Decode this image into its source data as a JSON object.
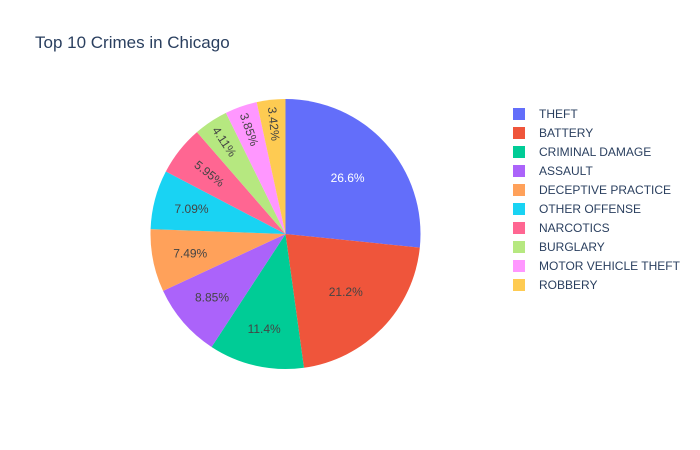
{
  "chart_data": {
    "type": "pie",
    "title": "Top 10 Crimes in Chicago",
    "labels": [
      "THEFT",
      "BATTERY",
      "CRIMINAL DAMAGE",
      "ASSAULT",
      "DECEPTIVE PRACTICE",
      "OTHER OFFENSE",
      "NARCOTICS",
      "BURGLARY",
      "MOTOR VEHICLE THEFT",
      "ROBBERY"
    ],
    "values": [
      26.6,
      21.2,
      11.4,
      8.85,
      7.49,
      7.09,
      5.95,
      4.11,
      3.85,
      3.42
    ],
    "value_labels": [
      "26.6%",
      "21.2%",
      "11.4%",
      "8.85%",
      "7.49%",
      "7.09%",
      "5.95%",
      "4.11%",
      "3.85%",
      "3.42%"
    ],
    "colors": [
      "#636efa",
      "#EF553B",
      "#00cc96",
      "#ab63fa",
      "#FFA15A",
      "#19d3f3",
      "#FF6692",
      "#B6E880",
      "#FF97FF",
      "#FECB52"
    ],
    "label_colors": [
      "#ffffff",
      "#444444",
      "#444444",
      "#444444",
      "#444444",
      "#444444",
      "#444444",
      "#444444",
      "#444444",
      "#444444"
    ],
    "legend_position": "right",
    "direction": "clockwise",
    "start": "top"
  }
}
